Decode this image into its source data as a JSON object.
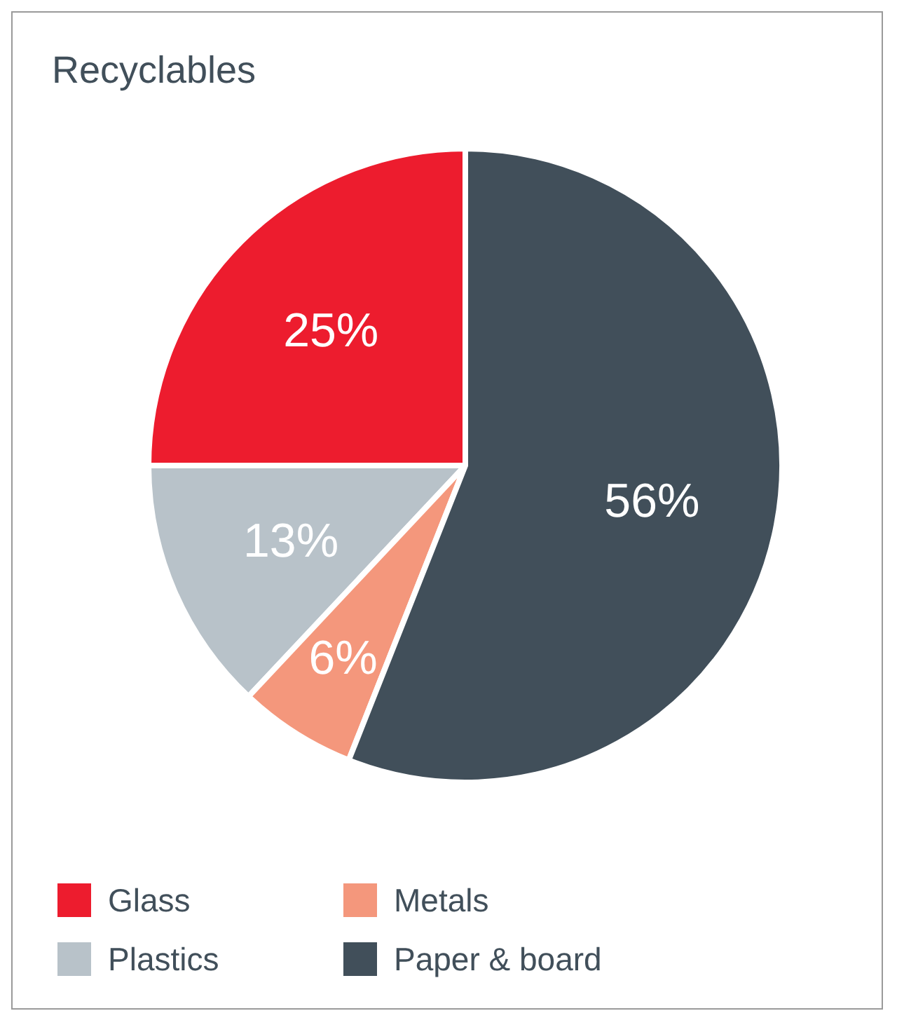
{
  "chart_data": {
    "type": "pie",
    "title": "Recyclables",
    "categories": [
      "Glass",
      "Plastics",
      "Metals",
      "Paper & board"
    ],
    "values": [
      25,
      13,
      6,
      56
    ],
    "colors": [
      "#ed1c2e",
      "#b8c2c9",
      "#f4977c",
      "#414f5a"
    ],
    "value_labels": [
      "25%",
      "13%",
      "6%",
      "56%"
    ],
    "legend": "bottom"
  }
}
